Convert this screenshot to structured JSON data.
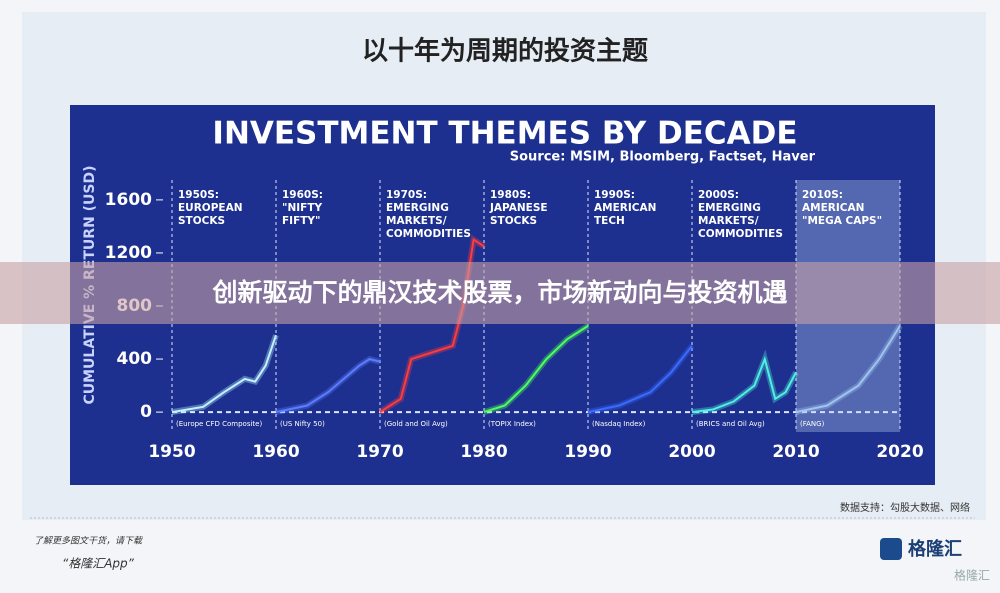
{
  "header": {
    "title": "以十年为周期的投资主题"
  },
  "chart_data": {
    "type": "line",
    "title": "INVESTMENT THEMES BY DECADE",
    "subtitle": "Source: MSIM, Bloomberg, Factset, Haver",
    "y_label": "CUMULATIVE % RETURN (USD)",
    "xlim": [
      1950,
      2020
    ],
    "xticks": [
      1950,
      1960,
      1970,
      1980,
      1990,
      2000,
      2010,
      2020
    ],
    "ylim": [
      -150,
      1750
    ],
    "yticks": [
      0,
      400,
      800,
      1200,
      1600
    ],
    "series": [
      {
        "label": [
          "1950S:",
          "EUROPEAN",
          "STOCKS"
        ],
        "index": "(Europe CFD Composite)",
        "color": "#bff4ff",
        "x": [
          1950,
          1953,
          1955,
          1957,
          1958,
          1959,
          1960
        ],
        "values": [
          0,
          40,
          150,
          250,
          230,
          350,
          580
        ]
      },
      {
        "label": [
          "1960S:",
          "\"NIFTY",
          "FIFTY\""
        ],
        "index": "(US Nifty 50)",
        "color": "#5c7dff",
        "x": [
          1960,
          1963,
          1965,
          1968,
          1969,
          1970
        ],
        "values": [
          0,
          50,
          150,
          350,
          400,
          380
        ]
      },
      {
        "label": [
          "1970S:",
          "EMERGING",
          "MARKETS/",
          "COMMODITIES"
        ],
        "index": "(Gold and Oil Avg)",
        "color": "#ff3b3b",
        "x": [
          1970,
          1972,
          1973,
          1975,
          1977,
          1978,
          1979,
          1980
        ],
        "values": [
          0,
          100,
          400,
          450,
          500,
          800,
          1300,
          1250
        ]
      },
      {
        "label": [
          "1980S:",
          "JAPANESE",
          "STOCKS"
        ],
        "index": "(TOPIX Index)",
        "color": "#4cff5a",
        "x": [
          1980,
          1982,
          1984,
          1986,
          1988,
          1990
        ],
        "values": [
          0,
          50,
          200,
          400,
          550,
          650
        ]
      },
      {
        "label": [
          "1990S:",
          "AMERICAN",
          "TECH"
        ],
        "index": "(Nasdaq Index)",
        "color": "#3a6bff",
        "x": [
          1990,
          1993,
          1996,
          1998,
          2000
        ],
        "values": [
          0,
          50,
          150,
          300,
          500
        ]
      },
      {
        "label": [
          "2000S:",
          "EMERGING",
          "MARKETS/",
          "COMMODITIES"
        ],
        "index": "(BRICS and Oil Avg)",
        "color": "#4ff0e0",
        "x": [
          2000,
          2002,
          2004,
          2006,
          2007,
          2008,
          2009,
          2010
        ],
        "values": [
          0,
          20,
          80,
          200,
          400,
          100,
          150,
          300
        ]
      },
      {
        "label": [
          "2010S:",
          "AMERICAN",
          "\"MEGA CAPS\""
        ],
        "index": "(FANG)",
        "color": "#9fc4ee",
        "x": [
          2010,
          2013,
          2016,
          2018,
          2020
        ],
        "values": [
          0,
          50,
          200,
          400,
          650
        ]
      }
    ]
  },
  "banner": {
    "text": "创新驱动下的鼎汉技术股票，市场新动向与投资机遇"
  },
  "footer": {
    "source": "数据支持：勾股大数据、网络",
    "promo": "了解更多图文干货，请下载",
    "app": "“格隆汇App”",
    "logo": "格隆汇",
    "watermark": "格隆汇"
  }
}
